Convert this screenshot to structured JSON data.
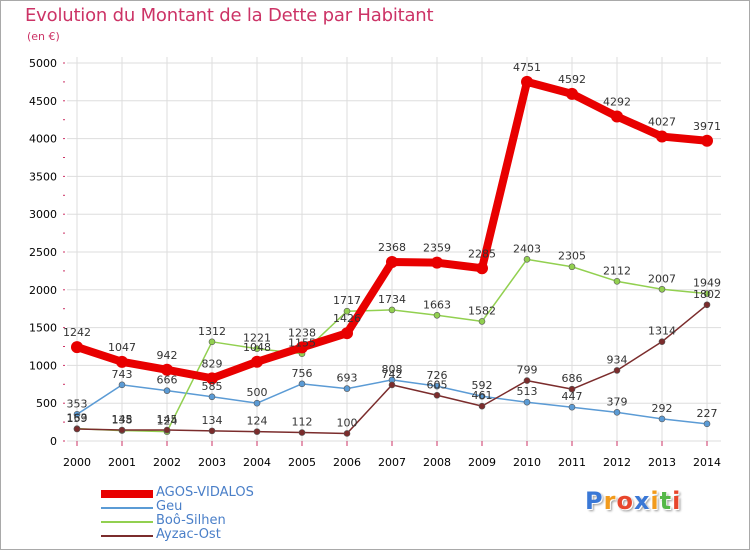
{
  "title": "Evolution du Montant de la Dette par Habitant",
  "subtitle": "(en €)",
  "logo": {
    "letters": [
      "P",
      "r",
      "o",
      "x",
      "i",
      "t",
      "i"
    ],
    "colors": [
      "#3a78d6",
      "#f29b1c",
      "#e8462c",
      "#3a78d6",
      "#f29b1c",
      "#55b848",
      "#e8462c"
    ]
  },
  "chart_data": {
    "type": "line",
    "categories": [
      "2000",
      "2001",
      "2002",
      "2003",
      "2004",
      "2005",
      "2006",
      "2007",
      "2008",
      "2009",
      "2010",
      "2011",
      "2012",
      "2013",
      "2014"
    ],
    "ylim": [
      0,
      5000
    ],
    "yticks": [
      0,
      500,
      1000,
      1500,
      2000,
      2500,
      3000,
      3500,
      4000,
      4500,
      5000
    ],
    "grid": true,
    "series": [
      {
        "name": "AGOS-VIDALOS",
        "color": "#e80000",
        "width": 8,
        "marker": 6,
        "values": [
          1242,
          1047,
          942,
          829,
          1048,
          1238,
          1426,
          2368,
          2359,
          2285,
          4751,
          4592,
          4292,
          4027,
          3971
        ]
      },
      {
        "name": "Geu",
        "color": "#5b9bd5",
        "width": 1.5,
        "marker": 3,
        "values": [
          353,
          743,
          666,
          585,
          500,
          756,
          693,
          808,
          726,
          592,
          513,
          447,
          379,
          292,
          227
        ]
      },
      {
        "name": "Boô-Silhen",
        "color": "#92d050",
        "width": 1.5,
        "marker": 3,
        "values": [
          163,
          138,
          124,
          1312,
          1221,
          1155,
          1717,
          1734,
          1663,
          1582,
          2403,
          2305,
          2112,
          2007,
          1949
        ]
      },
      {
        "name": "Ayzac-Ost",
        "color": "#7b2c2c",
        "width": 1.5,
        "marker": 3,
        "values": [
          159,
          145,
          145,
          134,
          124,
          112,
          100,
          742,
          605,
          461,
          799,
          686,
          934,
          1314,
          1802
        ]
      }
    ]
  }
}
